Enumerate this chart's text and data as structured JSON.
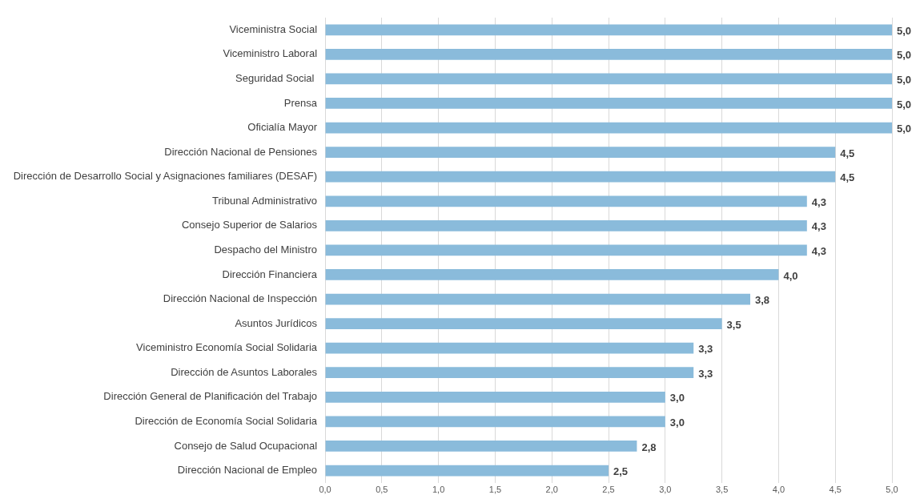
{
  "chart_data": {
    "type": "bar",
    "orientation": "horizontal",
    "categories": [
      "Viceministra Social",
      "Viceministro Laboral",
      "Seguridad Social ",
      "Prensa",
      "Oficialía Mayor",
      "Dirección Nacional de Pensiones",
      "Dirección de Desarrollo Social y Asignaciones familiares (DESAF)",
      "Tribunal Administrativo",
      "Consejo Superior de Salarios",
      "Despacho del Ministro",
      "Dirección Financiera",
      "Dirección Nacional de Inspección",
      "Asuntos Jurídicos",
      "Viceministro Economía Social Solidaria",
      "Dirección de Asuntos Laborales",
      "Dirección General de Planificación del Trabajo",
      "Dirección de Economía Social Solidaria",
      "Consejo de Salud Ocupacional",
      "Dirección Nacional de Empleo"
    ],
    "values": [
      5,
      5,
      5,
      5,
      5,
      4.5,
      4.5,
      4.25,
      4.25,
      4.25,
      4,
      3.75,
      3.5,
      3.25,
      3.25,
      3,
      3,
      2.75,
      2.5
    ],
    "value_labels": [
      "5,0",
      "5,0",
      "5,0",
      "5,0",
      "5,0",
      "4,5",
      "4,5",
      "4,3",
      "4,3",
      "4,3",
      "4,0",
      "3,8",
      "3,5",
      "3,3",
      "3,3",
      "3,0",
      "3,0",
      "2,8",
      "2,5"
    ],
    "color": "#8abbdb",
    "xlim": [
      0,
      5
    ],
    "xticks": [
      {
        "value": 0,
        "label": "0,0"
      },
      {
        "value": 0.5,
        "label": "0,5"
      },
      {
        "value": 1,
        "label": "1,0"
      },
      {
        "value": 1.5,
        "label": "1,5"
      },
      {
        "value": 2,
        "label": "2,0"
      },
      {
        "value": 2.5,
        "label": "2,5"
      },
      {
        "value": 3,
        "label": "3,0"
      },
      {
        "value": 3.5,
        "label": "3,5"
      },
      {
        "value": 4,
        "label": "4,0"
      },
      {
        "value": 4.5,
        "label": "4,5"
      },
      {
        "value": 5,
        "label": "5,0"
      }
    ],
    "grid": "x"
  }
}
